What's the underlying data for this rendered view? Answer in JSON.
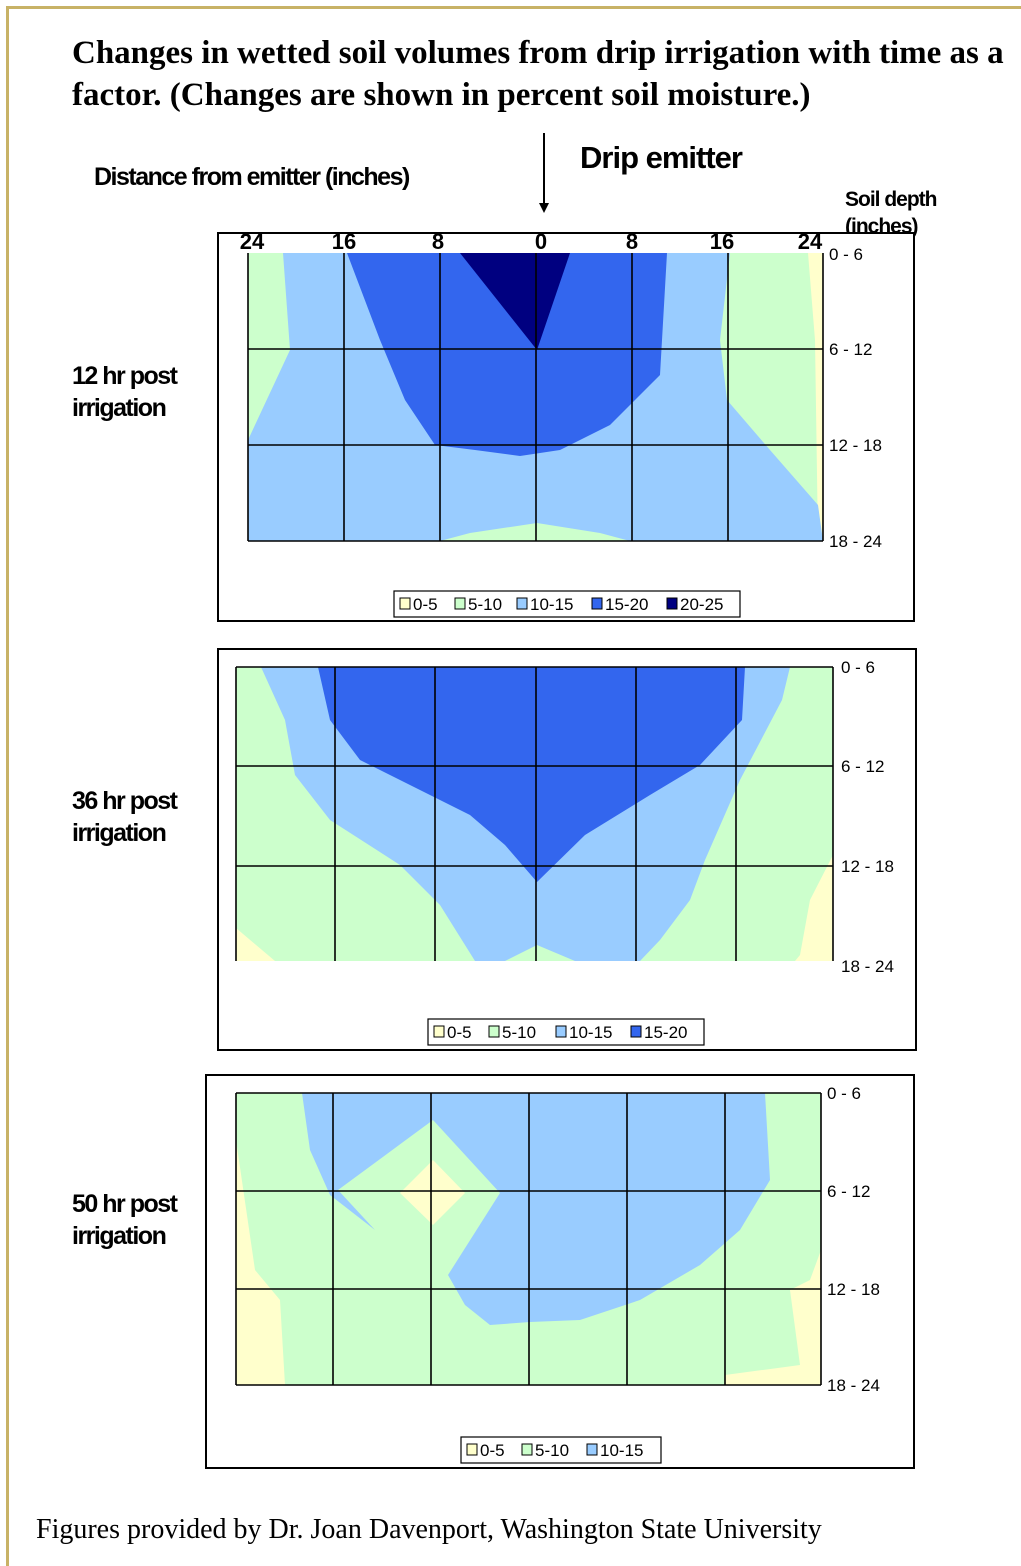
{
  "title": "Changes in wetted soil volumes from drip irrigation with time as a factor. (Changes are shown in percent soil moisture.)",
  "header": {
    "distance_label": "Distance from emitter (inches)",
    "emitter_label": "Drip emitter",
    "depth_label_line1": "Soil depth",
    "depth_label_line2": "(inches)"
  },
  "caption": "Figures provided by Dr. Joan Davenport, Washington State University",
  "colors": {
    "0-5": "#ffffcc",
    "5-10": "#ccffcc",
    "10-15": "#99ccff",
    "15-20": "#3366ee",
    "20-25": "#000080"
  },
  "chart_data": [
    {
      "type": "heatmap",
      "title": "12 hr post irrigation",
      "x_ticks": [
        "24",
        "16",
        "8",
        "0",
        "8",
        "16",
        "24"
      ],
      "y_ticks": [
        "0 - 6",
        "6 - 12",
        "12 - 18",
        "18 - 24"
      ],
      "legend": [
        "0-5",
        "5-10",
        "10-15",
        "15-20",
        "20-25"
      ],
      "grid": true,
      "note": "contour bands of soil moisture (%); innermost 20-25 band directly beneath the emitter in 0-6 in depth"
    },
    {
      "type": "heatmap",
      "title": "36 hr post irrigation",
      "x_ticks": [],
      "y_ticks": [
        "0 - 6",
        "6 - 12",
        "12 - 18",
        "18 - 24"
      ],
      "legend": [
        "0-5",
        "5-10",
        "10-15",
        "15-20"
      ],
      "grid": true
    },
    {
      "type": "heatmap",
      "title": "50 hr post irrigation",
      "x_ticks": [],
      "y_ticks": [
        "0 - 6",
        "6 - 12",
        "12 - 18",
        "18 - 24"
      ],
      "legend": [
        "0-5",
        "5-10",
        "10-15"
      ],
      "grid": true
    }
  ],
  "panels": [
    {
      "label_line1": "12 hr post",
      "label_line2": "irrigation"
    },
    {
      "label_line1": "36 hr post",
      "label_line2": "irrigation"
    },
    {
      "label_line1": "50 hr post",
      "label_line2": "irrigation"
    }
  ]
}
